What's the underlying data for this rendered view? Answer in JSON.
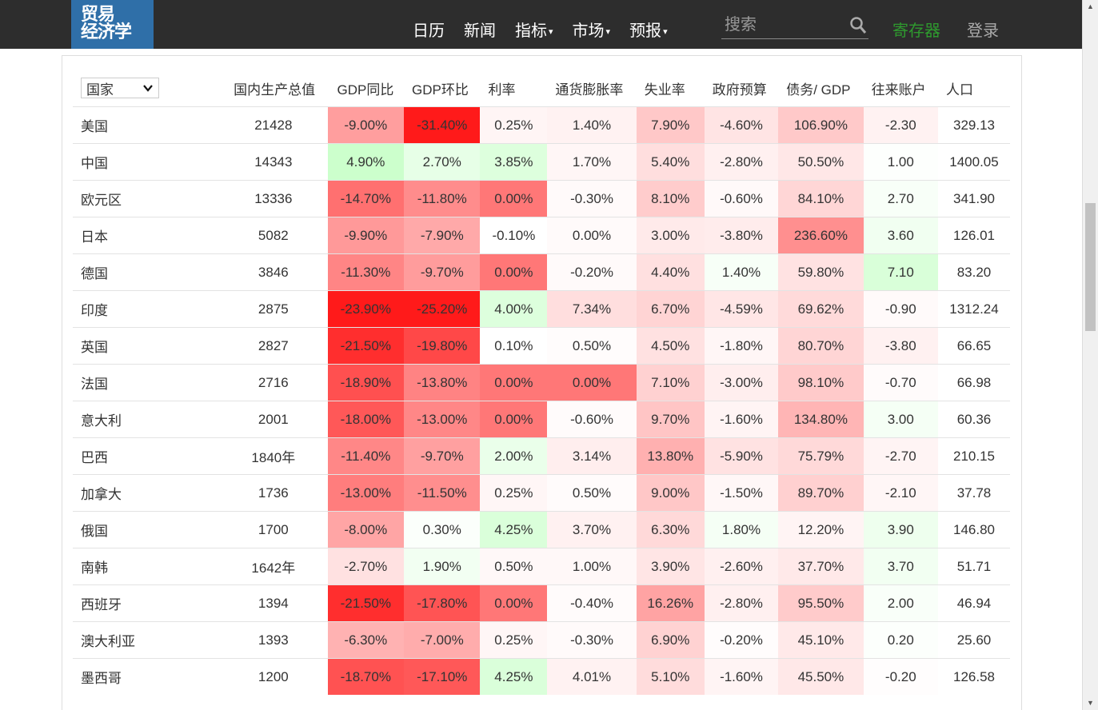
{
  "nav": {
    "logo_line1": "贸易",
    "logo_line2": "经济学",
    "items": [
      {
        "label": "日历",
        "caret": false
      },
      {
        "label": "新闻",
        "caret": false
      },
      {
        "label": "指标",
        "caret": true
      },
      {
        "label": "市场",
        "caret": true
      },
      {
        "label": "预报",
        "caret": true
      }
    ],
    "search_placeholder": "搜索",
    "register": "寄存器",
    "login": "登录"
  },
  "table": {
    "select_value": "国家",
    "headers": [
      "国内生产总值",
      "GDP同比",
      "GDP环比",
      "利率",
      "通货膨胀率",
      "失业率",
      "政府预算",
      "债务/ GDP",
      "往来账户",
      "人口"
    ],
    "rows": [
      [
        "美国",
        "21428",
        "-9.00%",
        "-31.40%",
        "0.25%",
        "1.40%",
        "7.90%",
        "-4.60%",
        "106.90%",
        "-2.30",
        "329.13"
      ],
      [
        "中国",
        "14343",
        "4.90%",
        "2.70%",
        "3.85%",
        "1.70%",
        "5.40%",
        "-2.80%",
        "50.50%",
        "1.00",
        "1400.05"
      ],
      [
        "欧元区",
        "13336",
        "-14.70%",
        "-11.80%",
        "0.00%",
        "-0.30%",
        "8.10%",
        "-0.60%",
        "84.10%",
        "2.70",
        "341.90"
      ],
      [
        "日本",
        "5082",
        "-9.90%",
        "-7.90%",
        "-0.10%",
        "0.00%",
        "3.00%",
        "-3.80%",
        "236.60%",
        "3.60",
        "126.01"
      ],
      [
        "德国",
        "3846",
        "-11.30%",
        "-9.70%",
        "0.00%",
        "-0.20%",
        "4.40%",
        "1.40%",
        "59.80%",
        "7.10",
        "83.20"
      ],
      [
        "印度",
        "2875",
        "-23.90%",
        "-25.20%",
        "4.00%",
        "7.34%",
        "6.70%",
        "-4.59%",
        "69.62%",
        "-0.90",
        "1312.24"
      ],
      [
        "英国",
        "2827",
        "-21.50%",
        "-19.80%",
        "0.10%",
        "0.50%",
        "4.50%",
        "-1.80%",
        "80.70%",
        "-3.80",
        "66.65"
      ],
      [
        "法国",
        "2716",
        "-18.90%",
        "-13.80%",
        "0.00%",
        "0.00%",
        "7.10%",
        "-3.00%",
        "98.10%",
        "-0.70",
        "66.98"
      ],
      [
        "意大利",
        "2001",
        "-18.00%",
        "-13.00%",
        "0.00%",
        "-0.60%",
        "9.70%",
        "-1.60%",
        "134.80%",
        "3.00",
        "60.36"
      ],
      [
        "巴西",
        "1840年",
        "-11.40%",
        "-9.70%",
        "2.00%",
        "3.14%",
        "13.80%",
        "-5.90%",
        "75.79%",
        "-2.70",
        "210.15"
      ],
      [
        "加拿大",
        "1736",
        "-13.00%",
        "-11.50%",
        "0.25%",
        "0.50%",
        "9.00%",
        "-1.50%",
        "89.70%",
        "-2.10",
        "37.78"
      ],
      [
        "俄国",
        "1700",
        "-8.00%",
        "0.30%",
        "4.25%",
        "3.70%",
        "6.30%",
        "1.80%",
        "12.20%",
        "3.90",
        "146.80"
      ],
      [
        "南韩",
        "1642年",
        "-2.70%",
        "1.90%",
        "0.50%",
        "1.00%",
        "3.90%",
        "-2.60%",
        "37.70%",
        "3.70",
        "51.71"
      ],
      [
        "西班牙",
        "1394",
        "-21.50%",
        "-17.80%",
        "0.00%",
        "-0.40%",
        "16.26%",
        "-2.80%",
        "95.50%",
        "2.00",
        "46.94"
      ],
      [
        "澳大利亚",
        "1393",
        "-6.30%",
        "-7.00%",
        "0.25%",
        "-0.30%",
        "6.90%",
        "-0.20%",
        "45.10%",
        "0.20",
        "25.60"
      ],
      [
        "墨西哥",
        "1200",
        "-18.70%",
        "-17.10%",
        "4.25%",
        "4.01%",
        "5.10%",
        "-1.60%",
        "45.50%",
        "-0.20",
        "126.58"
      ]
    ],
    "cell_colors": [
      [
        "#ffffff",
        "#ffffff",
        "#ff9e9e",
        "#ff1a1a",
        "#fff5f5",
        "#fff2f2",
        "#ffc8c8",
        "#ffe4e4",
        "#ffc9c9",
        "#fff2f2",
        "#ffffff"
      ],
      [
        "#ffffff",
        "#ffffff",
        "#ccffcc",
        "#e7ffe7",
        "#ddffdd",
        "#fff6f6",
        "#ffdede",
        "#fff0f0",
        "#ffe7e7",
        "#fdfffd",
        "#ffffff"
      ],
      [
        "#ffffff",
        "#ffffff",
        "#ff7070",
        "#ff8c8c",
        "#ff7777",
        "#fffafa",
        "#ffcccc",
        "#fff9f9",
        "#ffd6d6",
        "#f8fff8",
        "#ffffff"
      ],
      [
        "#ffffff",
        "#ffffff",
        "#ff9999",
        "#ffa9a9",
        "#ffffff",
        "#fffafa",
        "#ffeaea",
        "#ffecec",
        "#ff8f8f",
        "#f1fff1",
        "#ffffff"
      ],
      [
        "#ffffff",
        "#ffffff",
        "#ff8585",
        "#ff9c9c",
        "#ff7777",
        "#fffafa",
        "#ffe0e0",
        "#f7fff7",
        "#ffe2e2",
        "#d9ffd9",
        "#ffffff"
      ],
      [
        "#ffffff",
        "#ffffff",
        "#ff1a1a",
        "#ff1a1a",
        "#ddffdd",
        "#ffdede",
        "#ffd4d4",
        "#ffe6e6",
        "#ffdada",
        "#fffafa",
        "#ffffff"
      ],
      [
        "#ffffff",
        "#ffffff",
        "#ff2e2e",
        "#ff4848",
        "#ffffff",
        "#fffcfc",
        "#ffe1e1",
        "#fff6f6",
        "#ffd5d5",
        "#fff1f1",
        "#ffffff"
      ],
      [
        "#ffffff",
        "#ffffff",
        "#ff5050",
        "#ff8383",
        "#ff7777",
        "#ff7777",
        "#ffd1d1",
        "#ffeeee",
        "#ffcaca",
        "#fffbfb",
        "#ffffff"
      ],
      [
        "#ffffff",
        "#ffffff",
        "#ff5858",
        "#ff8787",
        "#ff7777",
        "#fffbfb",
        "#ffc5c5",
        "#fff4f4",
        "#ffb5b5",
        "#f5fff5",
        "#ffffff"
      ],
      [
        "#ffffff",
        "#ffffff",
        "#ff8787",
        "#ffa0a0",
        "#eaffea",
        "#ffeeee",
        "#ffb0b0",
        "#ffe2e2",
        "#ffd9d9",
        "#fff4f4",
        "#ffffff"
      ],
      [
        "#ffffff",
        "#ffffff",
        "#ff7d7d",
        "#ff8e8e",
        "#fff6f6",
        "#fffbfb",
        "#ffc7c7",
        "#fff7f7",
        "#ffd0d0",
        "#fff6f6",
        "#ffffff"
      ],
      [
        "#ffffff",
        "#ffffff",
        "#ffa5a5",
        "#fbfffb",
        "#daffda",
        "#fff1f1",
        "#ffd9d9",
        "#f5fff5",
        "#fff4f4",
        "#eeffee",
        "#ffffff"
      ],
      [
        "#ffffff",
        "#ffffff",
        "#ffe1e1",
        "#f2fff2",
        "#fff8f8",
        "#fff8f8",
        "#ffe5e5",
        "#fff0f0",
        "#ffe9e9",
        "#f2fff2",
        "#ffffff"
      ],
      [
        "#ffffff",
        "#ffffff",
        "#ff2e2e",
        "#ff5454",
        "#ff7777",
        "#fffbfb",
        "#ffa3a3",
        "#fff0f0",
        "#ffcbcb",
        "#f9fff9",
        "#ffffff"
      ],
      [
        "#ffffff",
        "#ffffff",
        "#ffb2b2",
        "#ffacac",
        "#fff6f6",
        "#fffafa",
        "#ffd2d2",
        "#fffcfc",
        "#ffe9e9",
        "#fcfffc",
        "#ffffff"
      ],
      [
        "#ffffff",
        "#ffffff",
        "#ff5252",
        "#ff5858",
        "#daffda",
        "#fff2f2",
        "#ffdcdc",
        "#fff4f4",
        "#ffe8e8",
        "#fffdfd",
        "#ffffff"
      ]
    ]
  }
}
